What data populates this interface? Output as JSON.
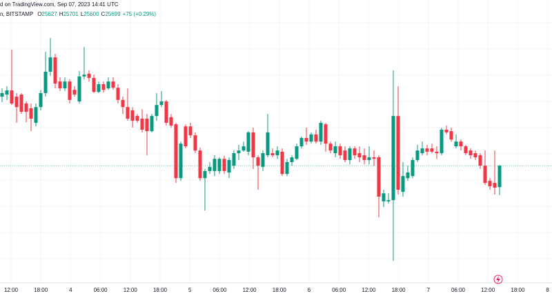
{
  "chart_data": {
    "type": "candlestick",
    "header": "d on TradingView.com, Sep 07, 2023 14:41 UTC",
    "symbol": "n, BITSTAMP",
    "ohlc_labels": [
      {
        "label": "O",
        "value": 25627
      },
      {
        "label": "H",
        "value": 25701
      },
      {
        "label": "L",
        "value": 25600
      },
      {
        "label": "C",
        "value": 25699
      }
    ],
    "change": "+75 (+0.29%)",
    "up_color": "#089981",
    "down_color": "#f23645",
    "ylim": [
      25305,
      26256
    ],
    "xtick_labels": [
      "12:00",
      "18:00",
      "4",
      "06:00",
      "12:00",
      "18:00",
      "5",
      "06:00",
      "12:00",
      "18:00",
      "6",
      "06:00",
      "12:00",
      "18:00",
      "7",
      "06:00",
      "12:00",
      "18:00",
      "8"
    ],
    "open": [
      25931,
      25938,
      25952,
      25931,
      25938,
      25908,
      25892,
      25843,
      25896,
      25943,
      26015,
      26063,
      25982,
      25959,
      25982,
      25954,
      25915,
      25999,
      26008,
      25994,
      25947,
      25973,
      25959,
      25982,
      25961,
      25920,
      25896,
      25885,
      25866,
      25857,
      25857,
      25815,
      25866,
      25903,
      25915,
      25862,
      25838,
      25657,
      25831,
      25831,
      25801,
      25750,
      25657,
      25681,
      25681,
      25681,
      25722,
      25676,
      25699,
      25741,
      25750,
      25746,
      25811,
      25727,
      25695,
      25734,
      25741,
      25734,
      25746,
      25671,
      25711,
      25722,
      25764,
      25792,
      25780,
      25804,
      25780,
      25838,
      25773,
      25741,
      25764,
      25750,
      25718,
      25757,
      25741,
      25734,
      25718,
      25727,
      25727,
      25579,
      25579,
      25583,
      25866,
      25611,
      25657,
      25664,
      25718,
      25741,
      25757,
      25757,
      25746,
      25741,
      25820,
      25815,
      25764,
      25780,
      25764,
      25750,
      25741,
      25734,
      25699,
      25648,
      25641,
      25627
    ],
    "high": [
      25959,
      25966,
      26089,
      25943,
      25943,
      25915,
      25908,
      25908,
      25954,
      26082,
      26128,
      26075,
      25996,
      25996,
      25989,
      25966,
      26017,
      26098,
      26019,
      26005,
      25982,
      25982,
      25996,
      25996,
      25973,
      25931,
      25959,
      25896,
      25873,
      25889,
      25873,
      25873,
      25943,
      25950,
      25920,
      25873,
      25843,
      25780,
      25838,
      25843,
      25811,
      25760,
      25688,
      25711,
      25734,
      25727,
      25732,
      25727,
      25750,
      25769,
      25780,
      25815,
      25827,
      25734,
      25750,
      25873,
      25757,
      25764,
      25757,
      25722,
      25734,
      25773,
      25797,
      25827,
      25811,
      25820,
      25850,
      25843,
      25780,
      25780,
      25773,
      25764,
      25764,
      25764,
      25764,
      25757,
      25764,
      25750,
      25734,
      25618,
      25606,
      26019,
      25966,
      25711,
      25699,
      25727,
      25769,
      25780,
      25769,
      25773,
      25764,
      25827,
      25834,
      25827,
      25804,
      25787,
      25769,
      25757,
      25750,
      25741,
      25750,
      25657,
      25750,
      25701
    ],
    "low": [
      25913,
      25920,
      25903,
      25843,
      25873,
      25845,
      25815,
      25831,
      25885,
      25931,
      26001,
      25959,
      25950,
      25950,
      25908,
      25931,
      25908,
      25989,
      25982,
      25943,
      25943,
      25945,
      25954,
      25954,
      25908,
      25873,
      25850,
      25827,
      25843,
      25811,
      25734,
      25811,
      25850,
      25896,
      25834,
      25827,
      25641,
      25648,
      25757,
      25792,
      25741,
      25648,
      25548,
      25671,
      25664,
      25671,
      25671,
      25657,
      25688,
      25718,
      25746,
      25734,
      25688,
      25618,
      25681,
      25727,
      25727,
      25722,
      25664,
      25664,
      25699,
      25718,
      25757,
      25769,
      25773,
      25773,
      25769,
      25746,
      25741,
      25727,
      25722,
      25711,
      25704,
      25722,
      25711,
      25704,
      25704,
      25699,
      25525,
      25560,
      25572,
      25379,
      25602,
      25595,
      25648,
      25657,
      25711,
      25734,
      25734,
      25741,
      25722,
      25734,
      25804,
      25780,
      25757,
      25750,
      25734,
      25722,
      25718,
      25688,
      25634,
      25618,
      25602,
      25600
    ],
    "close": [
      25943,
      25952,
      25908,
      25896,
      25880,
      25880,
      25857,
      25896,
      25943,
      26015,
      26063,
      25975,
      25959,
      25982,
      25920,
      25938,
      25999,
      26005,
      25994,
      25947,
      25973,
      25954,
      25982,
      25961,
      25920,
      25896,
      25857,
      25850,
      25850,
      25820,
      25815,
      25866,
      25903,
      25915,
      25843,
      25834,
      25657,
      25773,
      25764,
      25801,
      25750,
      25657,
      25681,
      25695,
      25722,
      25722,
      25681,
      25718,
      25741,
      25750,
      25764,
      25811,
      25727,
      25699,
      25741,
      25811,
      25734,
      25750,
      25671,
      25711,
      25727,
      25764,
      25792,
      25780,
      25804,
      25780,
      25843,
      25773,
      25750,
      25764,
      25734,
      25718,
      25757,
      25734,
      25727,
      25718,
      25727,
      25722,
      25595,
      25606,
      25583,
      25866,
      25618,
      25664,
      25676,
      25718,
      25750,
      25757,
      25746,
      25746,
      25741,
      25820,
      25811,
      25787,
      25780,
      25764,
      25741,
      25734,
      25727,
      25699,
      25641,
      25630,
      25625,
      25699
    ]
  }
}
